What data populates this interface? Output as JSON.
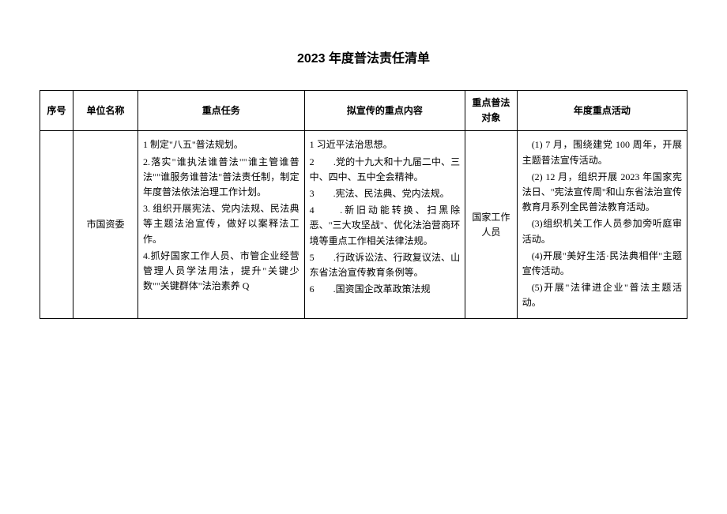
{
  "title": "2023 年度普法责任清单",
  "headers": {
    "seq": "序号",
    "unit": "单位名称",
    "task": "重点任务",
    "content": "拟宣传的重点内容",
    "target": "重点普法对象",
    "activity": "年度重点活动"
  },
  "row": {
    "seq": "",
    "unit": "市国资委",
    "tasks": {
      "t1": "1 制定\"八五\"普法规划。",
      "t2": "2.落实\"谁执法谁普法\"\"谁主管谁普法\"\"谁服务谁普法\"普法责任制，制定年度普法依法治理工作计划。",
      "t3": "3. 组织开展宪法、党内法规、民法典等主题法治宣传，做好以案释法工作。",
      "t4": "4.抓好国家工作人员、市管企业经营管理人员学法用法，提升\"关键少数\"\"关键群体\"法治素养 Q"
    },
    "contents": {
      "c1": "1 习近平法治思想。",
      "c2": "2　　.党的十九大和十九届二中、三中、四中、五中全会精神。",
      "c3": "3　　.宪法、民法典、党内法规。",
      "c4": "4　　.新旧动能转换、扫黑除恶、\"三大攻坚战\"、优化法治营商环境等重点工作相关法律法规。",
      "c5": "5　　.行政诉讼法、行政复议法、山东省法治宣传教育条例等。",
      "c6": "6　　.国资国企改革政策法规"
    },
    "target": "国家工作人员",
    "activities": {
      "a1": "(1) 7 月，围绕建党 100 周年，开展主题普法宣传活动。",
      "a2": "(2) 12 月，组织开展 2023 年国家宪法日、\"宪法宣传周\"和山东省法治宣传教育月系列全民普法教育活动。",
      "a3": "(3)组织机关工作人员参加旁听庭审活动。",
      "a4": "(4)开展\"美好生活·民法典相伴\"主题宣传活动。",
      "a5": "(5)开展\"法律进企业\"普法主题活动。"
    }
  },
  "colors": {
    "background": "#ffffff",
    "border": "#000000",
    "text": "#000000"
  }
}
